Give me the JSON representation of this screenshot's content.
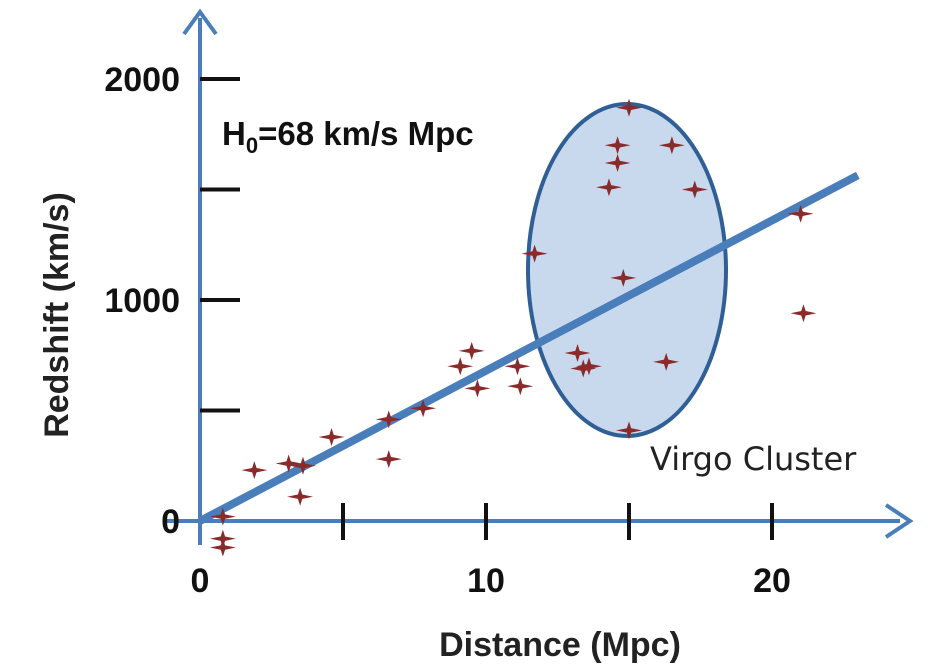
{
  "chart_data": {
    "type": "scatter",
    "xlabel": "Distance (Mpc)",
    "ylabel": "Redshift (km/s)",
    "xlim": [
      0,
      25
    ],
    "ylim": [
      0,
      2000
    ],
    "x_ticks": [
      0,
      5,
      10,
      15,
      20
    ],
    "x_tick_labels": [
      "0",
      "10",
      "20"
    ],
    "y_ticks": [
      0,
      500,
      1000,
      1500,
      2000
    ],
    "y_tick_labels": [
      "0",
      "1000",
      "2000"
    ],
    "annotation": {
      "main": "H",
      "sub": "0",
      "rest": "=68 km/s Mpc"
    },
    "region_label": "Virgo Cluster",
    "fit_line": {
      "slope": 68,
      "x_range": [
        0,
        23
      ]
    },
    "series": [
      {
        "points": [
          [
            0.8,
            20
          ],
          [
            0.8,
            -80
          ],
          [
            0.8,
            -120
          ],
          [
            1.9,
            230
          ],
          [
            3.1,
            260
          ],
          [
            3.6,
            250
          ],
          [
            3.5,
            110
          ],
          [
            4.6,
            380
          ],
          [
            6.6,
            460
          ],
          [
            6.6,
            280
          ],
          [
            7.8,
            510
          ],
          [
            9.1,
            700
          ],
          [
            9.5,
            770
          ],
          [
            9.7,
            600
          ],
          [
            11.1,
            700
          ],
          [
            11.2,
            610
          ],
          [
            11.7,
            1210
          ],
          [
            13.2,
            760
          ],
          [
            13.4,
            690
          ],
          [
            13.6,
            700
          ],
          [
            14.3,
            1510
          ],
          [
            14.6,
            1700
          ],
          [
            14.6,
            1620
          ],
          [
            14.8,
            1100
          ],
          [
            15.0,
            1870
          ],
          [
            15.0,
            410
          ],
          [
            16.5,
            1700
          ],
          [
            16.3,
            720
          ],
          [
            17.3,
            1500
          ],
          [
            21.0,
            1390
          ],
          [
            21.1,
            940
          ]
        ]
      }
    ],
    "colors": {
      "axis": "#4a7ebb",
      "fit_line": "#4a7ebb",
      "points": "#8b2a2a",
      "ellipse_fill": "#c8d9ee",
      "ellipse_stroke": "#2f5f95"
    }
  }
}
